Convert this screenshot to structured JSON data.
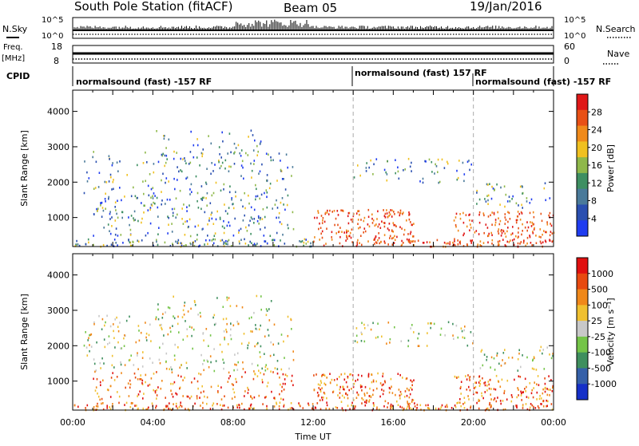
{
  "header": {
    "station": "South Pole Station (fitACF)",
    "beam": "Beam 05",
    "date": "19/Jan/2016"
  },
  "summary": {
    "nsky_label": "N.Sky",
    "nsky_top": "10^5",
    "nsky_bottom": "10^0",
    "nsearch_label": "N.Search",
    "freq_label_1": "Freq.",
    "freq_label_2": "[MHz]",
    "freq_top": "18",
    "freq_bottom": "8",
    "nave_label": "Nave",
    "nave_top": "60",
    "nave_bottom": "0",
    "cpid_label": "CPID",
    "modes": [
      "normalsound (fast) -157 RF",
      "normalsound (fast) 157 RF",
      "normalsound (fast) -157 RF"
    ]
  },
  "colors": {
    "power": [
      "#1f3cf0",
      "#2a4fb0",
      "#4a7a9a",
      "#3e8f62",
      "#8fb84a",
      "#f0c020",
      "#f08a1a",
      "#e85015",
      "#e01818"
    ],
    "velocity": [
      "#1530c8",
      "#3560a8",
      "#3f8f5e",
      "#74c448",
      "#c8c8c8",
      "#f0c030",
      "#f0881a",
      "#e84a10",
      "#e01010"
    ]
  },
  "chart_data": [
    {
      "type": "heatmap",
      "panel": "power",
      "ylabel": "Slant Range [km]",
      "yticks": [
        "4000",
        "3000",
        "2000",
        "1000"
      ],
      "ylim": [
        180,
        4600
      ],
      "xticks": [
        "00:00",
        "04:00",
        "08:00",
        "12:00",
        "16:00",
        "20:00",
        "00:00"
      ],
      "xlim_hours": [
        0,
        24
      ],
      "colorbar_label": "Power [dB]",
      "colorbar_ticks": [
        "28",
        "24",
        "20",
        "16",
        "12",
        "8",
        "4"
      ],
      "vlines_hours": [
        14.0,
        20.0
      ]
    },
    {
      "type": "heatmap",
      "panel": "velocity",
      "xlabel": "Time UT",
      "ylabel": "Slant Range [km]",
      "yticks": [
        "4000",
        "3000",
        "2000",
        "1000"
      ],
      "ylim": [
        180,
        4600
      ],
      "xticks": [
        "00:00",
        "04:00",
        "08:00",
        "12:00",
        "16:00",
        "20:00",
        "00:00"
      ],
      "xlim_hours": [
        0,
        24
      ],
      "colorbar_label": "Velocity [m s⁻¹]",
      "colorbar_ticks": [
        "1000",
        "500",
        "100",
        "25",
        "-25",
        "-100",
        "-500",
        "-1000"
      ],
      "vlines_hours": [
        14.0,
        20.0
      ]
    }
  ]
}
